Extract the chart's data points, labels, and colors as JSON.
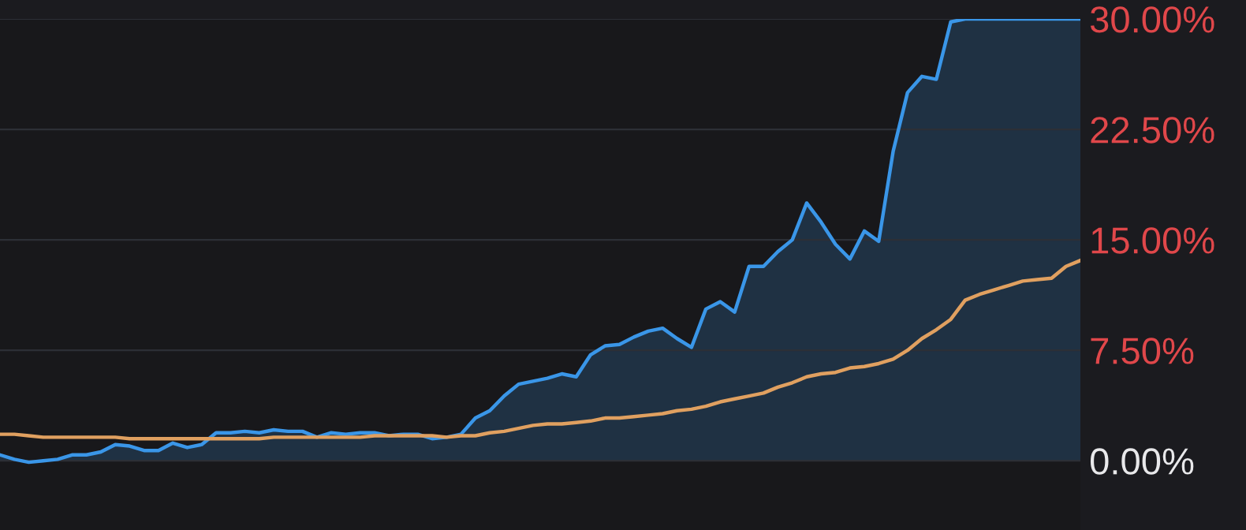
{
  "chart_data": {
    "type": "line",
    "categories": [
      null,
      null,
      null,
      null,
      null,
      null,
      null,
      null,
      null,
      null,
      null,
      null,
      null,
      null,
      null,
      null,
      null,
      null,
      null,
      null,
      null,
      null,
      null,
      null,
      null,
      null,
      null,
      null,
      null,
      null,
      null,
      null,
      null,
      null,
      null,
      null,
      null,
      null,
      null,
      null,
      null,
      null,
      null,
      null,
      null,
      null,
      null,
      null,
      null,
      null,
      null,
      null,
      null,
      null,
      null,
      null,
      null,
      null,
      null,
      null,
      null,
      null,
      null,
      null,
      null,
      null,
      null,
      null,
      null,
      null,
      null,
      null,
      null,
      null,
      null,
      null
    ],
    "ylim": [
      -4.7,
      30
    ],
    "yticks": [
      {
        "value": 0,
        "label": "0.00%"
      },
      {
        "value": 7.5,
        "label": "7.50%"
      },
      {
        "value": 15,
        "label": "15.00%"
      },
      {
        "value": 22.5,
        "label": "22.50%"
      },
      {
        "value": 30,
        "label": "30.00%"
      }
    ],
    "grid": "y",
    "series": [
      {
        "type": "area",
        "color": "#3a96e8",
        "values": [
          0.4,
          0.1,
          -0.1,
          0.0,
          0.1,
          0.4,
          0.4,
          0.6,
          1.1,
          1.0,
          0.7,
          0.7,
          1.2,
          0.9,
          1.1,
          1.9,
          1.9,
          2.0,
          1.9,
          2.1,
          2.0,
          2.0,
          1.6,
          1.9,
          1.8,
          1.9,
          1.9,
          1.7,
          1.8,
          1.8,
          1.5,
          1.6,
          1.8,
          2.9,
          3.4,
          4.4,
          5.2,
          5.4,
          5.6,
          5.9,
          5.7,
          7.2,
          7.8,
          7.9,
          8.4,
          8.8,
          9.0,
          8.3,
          7.7,
          10.3,
          10.8,
          10.1,
          13.2,
          13.2,
          14.2,
          15.0,
          17.5,
          16.2,
          14.7,
          13.7,
          15.6,
          14.9,
          21.0,
          25.0,
          26.1,
          25.9,
          29.8,
          30,
          30,
          30,
          30,
          30,
          30,
          30,
          30,
          30
        ]
      },
      {
        "type": "line",
        "color": "#e0a060",
        "values": [
          1.8,
          1.8,
          1.7,
          1.6,
          1.6,
          1.6,
          1.6,
          1.6,
          1.6,
          1.5,
          1.5,
          1.5,
          1.5,
          1.5,
          1.5,
          1.5,
          1.5,
          1.5,
          1.5,
          1.6,
          1.6,
          1.6,
          1.6,
          1.6,
          1.6,
          1.6,
          1.7,
          1.7,
          1.7,
          1.7,
          1.7,
          1.6,
          1.7,
          1.7,
          1.9,
          2.0,
          2.2,
          2.4,
          2.5,
          2.5,
          2.6,
          2.7,
          2.9,
          2.9,
          3.0,
          3.1,
          3.2,
          3.4,
          3.5,
          3.7,
          4.0,
          4.2,
          4.4,
          4.6,
          5.0,
          5.3,
          5.7,
          5.9,
          6.0,
          6.3,
          6.4,
          6.6,
          6.9,
          7.5,
          8.3,
          8.9,
          9.6,
          10.9,
          11.3,
          11.6,
          11.9,
          12.2,
          12.3,
          12.4,
          13.2,
          13.6
        ]
      }
    ]
  }
}
